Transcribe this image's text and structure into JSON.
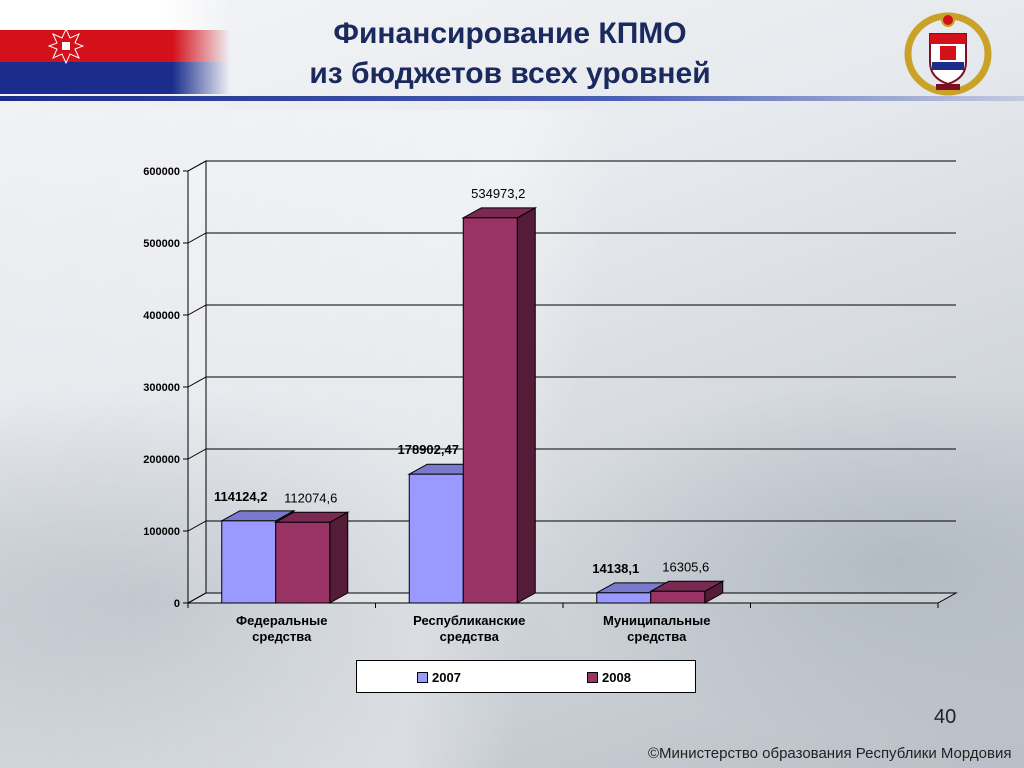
{
  "slide": {
    "title_line1": "Финансирование КПМО",
    "title_line2": "из бюджетов всех уровней",
    "number": "40",
    "copyright": "©Министерство образования Республики Мордовия"
  },
  "colors": {
    "series_2007": "#9999ff",
    "series_2008": "#993366",
    "title": "#1a2a5e",
    "flag_red": "#d4101a",
    "flag_blue": "#1a2d8c"
  },
  "chart_data": {
    "type": "bar",
    "title": "",
    "xlabel": "",
    "ylabel": "",
    "ylim": [
      0,
      600000
    ],
    "yticks": [
      "0",
      "100000",
      "200000",
      "300000",
      "400000",
      "500000",
      "600000"
    ],
    "categories": [
      [
        "Федеральные",
        "средства"
      ],
      [
        "Республиканские",
        "средства"
      ],
      [
        "Муниципальные",
        "средства"
      ]
    ],
    "series": [
      {
        "name": "2007",
        "values": [
          114124.2,
          178902.47,
          14138.1
        ],
        "labels": [
          "114124,2",
          "178902,47",
          "14138,1"
        ]
      },
      {
        "name": "2008",
        "values": [
          112074.6,
          534973.2,
          16305.6
        ],
        "labels": [
          "112074,6",
          "534973,2",
          "16305,6"
        ]
      }
    ],
    "grid": true,
    "legend_position": "bottom",
    "style": "3d-clustered-column"
  }
}
